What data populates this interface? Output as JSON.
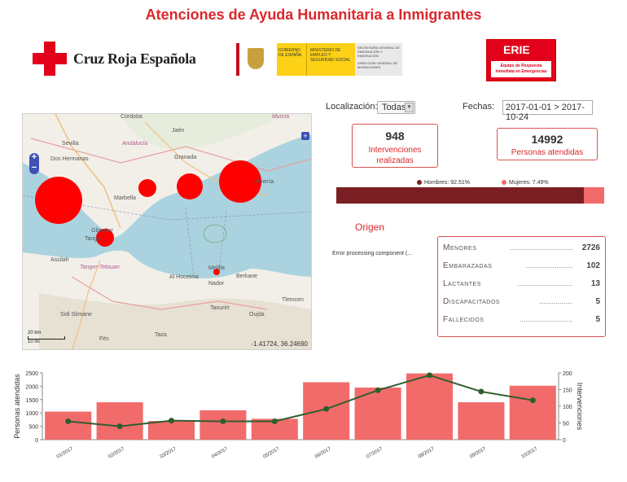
{
  "title": "Atenciones de Ayuda Humanitaria a Inmigrantes",
  "logos": {
    "cruz_roja": "Cruz Roja Española",
    "gov_line1": "GOBIERNO DE ESPAÑA",
    "gov_line2": "MINISTERIO DE EMPLEO Y SEGURIDAD SOCIAL",
    "gov_line3": "SECRETARÍA GENERAL DE INMIGRACIÓN Y EMIGRACIÓN",
    "gov_line4": "DIRECCIÓN GENERAL DE MIGRACIONES",
    "erie_title": "ERIE",
    "erie_subtitle": "Equipo de Respuesta Inmediata en Emergencias"
  },
  "map": {
    "coords": "-1.41724, 36.24690",
    "zoom_in": "+",
    "zoom_out": "−",
    "layers_icon": "layers-icon",
    "scale_km": "20 km",
    "scale_mi": "10 mi",
    "places": [
      {
        "name": "Córdoba",
        "k": "cordoba"
      },
      {
        "name": "Jaén",
        "k": "jaen"
      },
      {
        "name": "Murcia",
        "k": "murcia"
      },
      {
        "name": "Sevilla",
        "k": "sevilla"
      },
      {
        "name": "Andalucía",
        "k": "andalucia"
      },
      {
        "name": "Dos Hermanas",
        "k": "doshermanas"
      },
      {
        "name": "Granada",
        "k": "granada"
      },
      {
        "name": "Almería",
        "k": "almeria"
      },
      {
        "name": "Marbella",
        "k": "marbella"
      },
      {
        "name": "Gibraltar",
        "k": "gibraltar"
      },
      {
        "name": "Tanger",
        "k": "tanger"
      },
      {
        "name": "Tanger-Tetouan",
        "k": "tangertet"
      },
      {
        "name": "Al Hoceima",
        "k": "alhoceima"
      },
      {
        "name": "Melilla",
        "k": "melilla"
      },
      {
        "name": "Nador",
        "k": "nador"
      },
      {
        "name": "Berkane",
        "k": "berkane"
      },
      {
        "name": "Taourirt",
        "k": "taourirt"
      },
      {
        "name": "Oujda",
        "k": "oujda"
      },
      {
        "name": "Tlemcen",
        "k": "tlemcen"
      },
      {
        "name": "Sidi Slimane",
        "k": "sidislimane"
      },
      {
        "name": "Fès",
        "k": "fes"
      },
      {
        "name": "Taza",
        "k": "taza"
      },
      {
        "name": "Assilah",
        "k": "assilah"
      }
    ]
  },
  "filters": {
    "localizacion_label": "Localización:",
    "localizacion_value": "Todas",
    "fechas_label": "Fechas:",
    "fechas_value": "2017-01-01 > 2017-10-24"
  },
  "kpis": {
    "intervenciones_value": "948",
    "intervenciones_label_1": "Intervenciones",
    "intervenciones_label_2": "realizadas",
    "personas_value": "14992",
    "personas_label": "Personas atendidas"
  },
  "gender": {
    "hombres_label": "Hombres: 92.51%",
    "mujeres_label": "Mujeres: 7.49%",
    "hombres_pct": 92.51,
    "mujeres_pct": 7.49,
    "hombres_color": "#7b1e23",
    "mujeres_color": "#f26b6b"
  },
  "origen": {
    "title": "Origen",
    "error": "Error processing component (..."
  },
  "stats": [
    {
      "label": "Menores",
      "dots": "...............................",
      "value": "2726"
    },
    {
      "label": "Embarazadas",
      "dots": "........................",
      "value": "102"
    },
    {
      "label": "Lactantes",
      "dots": "...........................",
      "value": "13"
    },
    {
      "label": "Discapacitados",
      "dots": "...................",
      "value": "5"
    },
    {
      "label": "Fallecidos",
      "dots": "..........................",
      "value": "5"
    }
  ],
  "chart_data": {
    "type": "bar",
    "categories": [
      "01/2017",
      "02/2017",
      "03/2017",
      "04/2017",
      "05/2017",
      "06/2017",
      "07/2017",
      "08/2017",
      "09/2017",
      "10/2017"
    ],
    "series": [
      {
        "name": "Personas atendidas",
        "type": "bar",
        "axis": "left",
        "color": "#f26b6b",
        "values": [
          1050,
          1400,
          700,
          1100,
          780,
          2150,
          1950,
          2480,
          1400,
          2020
        ]
      },
      {
        "name": "Intervenciones",
        "type": "line",
        "axis": "right",
        "color": "#2e5e2e",
        "values": [
          55,
          40,
          57,
          55,
          55,
          92,
          148,
          193,
          144,
          118
        ]
      }
    ],
    "ylabel": "Personas atendidas",
    "y2label": "Intervenciones",
    "ylim": [
      0,
      2500
    ],
    "y2lim": [
      0,
      200
    ],
    "yticks": [
      0,
      500,
      1000,
      1500,
      2000,
      2500
    ],
    "y2ticks": [
      0,
      50,
      100,
      150,
      200
    ]
  }
}
